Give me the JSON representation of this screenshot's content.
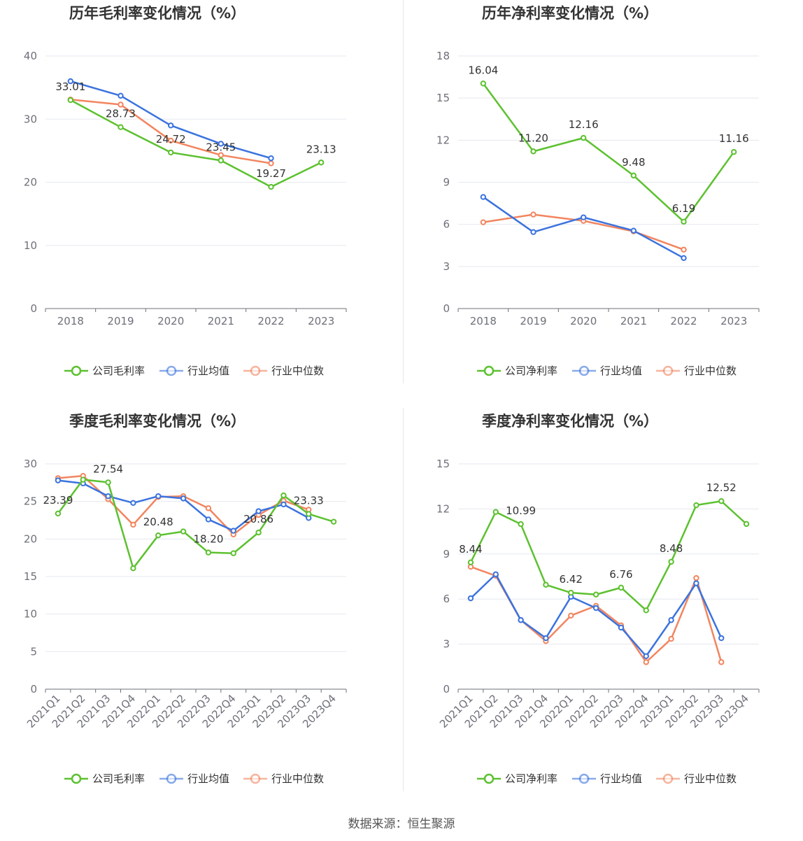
{
  "colors": {
    "company": "#5cc12f",
    "avg": "#3b73de",
    "median": "#f2855f"
  },
  "legend": {
    "gross": [
      "公司毛利率",
      "行业均值",
      "行业中位数"
    ],
    "net": [
      "公司净利率",
      "行业均值",
      "行业中位数"
    ]
  },
  "source": "数据来源：恒生聚源",
  "chart_data": [
    {
      "type": "line",
      "title": "历年毛利率变化情况（%）",
      "categories": [
        "2018",
        "2019",
        "2020",
        "2021",
        "2022",
        "2023"
      ],
      "ylim": [
        0,
        40
      ],
      "yticks": [
        0,
        10,
        20,
        30,
        40
      ],
      "grid": true,
      "legend_position": "bottom",
      "series": [
        {
          "name": "公司毛利率",
          "values": [
            33.01,
            28.73,
            24.72,
            23.45,
            19.27,
            23.13
          ],
          "labels": [
            "33.01",
            "28.73",
            "24.72",
            "23.45",
            "19.27",
            "23.13"
          ]
        },
        {
          "name": "行业均值",
          "values": [
            36.0,
            33.7,
            29.0,
            26.1,
            23.8,
            null
          ]
        },
        {
          "name": "行业中位数",
          "values": [
            33.1,
            32.3,
            26.6,
            24.3,
            23.0,
            null
          ]
        }
      ]
    },
    {
      "type": "line",
      "title": "历年净利率变化情况（%）",
      "categories": [
        "2018",
        "2019",
        "2020",
        "2021",
        "2022",
        "2023"
      ],
      "ylim": [
        0,
        18
      ],
      "yticks": [
        0,
        3,
        6,
        9,
        12,
        15,
        18
      ],
      "grid": true,
      "legend_position": "bottom",
      "series": [
        {
          "name": "公司净利率",
          "values": [
            16.04,
            11.2,
            12.16,
            9.48,
            6.19,
            11.16
          ],
          "labels": [
            "16.04",
            "11.20",
            "12.16",
            "9.48",
            "6.19",
            "11.16"
          ]
        },
        {
          "name": "行业均值",
          "values": [
            7.95,
            5.45,
            6.5,
            5.55,
            3.6,
            null
          ]
        },
        {
          "name": "行业中位数",
          "values": [
            6.15,
            6.7,
            6.25,
            5.5,
            4.2,
            null
          ]
        }
      ]
    },
    {
      "type": "line",
      "title": "季度毛利率变化情况（%）",
      "categories": [
        "2021Q1",
        "2021Q2",
        "2021Q3",
        "2021Q4",
        "2022Q1",
        "2022Q2",
        "2022Q3",
        "2022Q4",
        "2023Q1",
        "2023Q2",
        "2023Q3",
        "2023Q4"
      ],
      "ylim": [
        0,
        30
      ],
      "yticks": [
        0,
        5,
        10,
        15,
        20,
        25,
        30
      ],
      "grid": true,
      "legend_position": "bottom",
      "series": [
        {
          "name": "公司毛利率",
          "values": [
            23.39,
            27.9,
            27.54,
            16.1,
            20.48,
            21.0,
            18.2,
            18.1,
            20.86,
            25.8,
            23.33,
            22.3
          ],
          "labels": [
            "23.39",
            "",
            "27.54",
            "",
            "20.48",
            "",
            "18.20",
            "",
            "20.86",
            "",
            "23.33",
            ""
          ]
        },
        {
          "name": "行业均值",
          "values": [
            27.8,
            27.4,
            25.7,
            24.8,
            25.7,
            25.4,
            22.6,
            21.1,
            23.7,
            24.6,
            22.8,
            null
          ]
        },
        {
          "name": "行业中位数",
          "values": [
            28.1,
            28.4,
            25.3,
            21.9,
            25.6,
            25.7,
            24.1,
            20.6,
            23.2,
            25.1,
            23.9,
            null
          ]
        }
      ]
    },
    {
      "type": "line",
      "title": "季度净利率变化情况（%）",
      "categories": [
        "2021Q1",
        "2021Q2",
        "2021Q3",
        "2021Q4",
        "2022Q1",
        "2022Q2",
        "2022Q3",
        "2022Q4",
        "2023Q1",
        "2023Q2",
        "2023Q3",
        "2023Q4"
      ],
      "ylim": [
        0,
        15
      ],
      "yticks": [
        0,
        3,
        6,
        9,
        12,
        15
      ],
      "grid": true,
      "legend_position": "bottom",
      "series": [
        {
          "name": "公司净利率",
          "values": [
            8.44,
            11.8,
            10.99,
            6.95,
            6.42,
            6.3,
            6.76,
            5.25,
            8.48,
            12.25,
            12.52,
            11.0
          ],
          "labels": [
            "8.44",
            "",
            "10.99",
            "",
            "6.42",
            "",
            "6.76",
            "",
            "8.48",
            "",
            "12.52",
            ""
          ]
        },
        {
          "name": "行业均值",
          "values": [
            6.05,
            7.65,
            4.6,
            3.4,
            6.15,
            5.4,
            4.1,
            2.2,
            4.6,
            7.05,
            3.4,
            null
          ]
        },
        {
          "name": "行业中位数",
          "values": [
            8.15,
            7.55,
            4.6,
            3.2,
            4.9,
            5.55,
            4.25,
            1.8,
            3.35,
            7.4,
            1.8,
            null
          ]
        }
      ]
    }
  ]
}
